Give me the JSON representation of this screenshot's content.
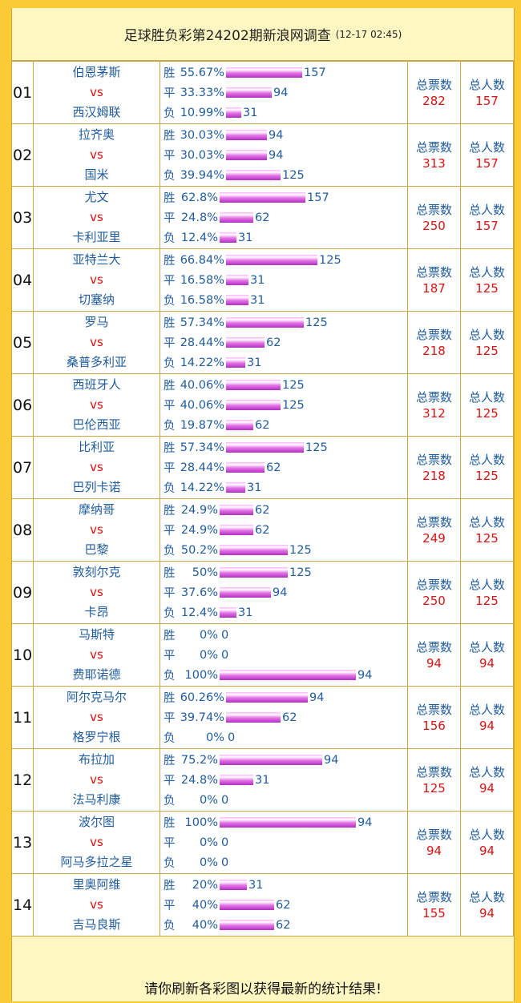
{
  "header": {
    "title": "足球胜负彩第24202期新浪网调查",
    "timestamp": "(12-17 02:45)"
  },
  "labels": {
    "vs": "vs",
    "win": "胜",
    "draw": "平",
    "lose": "负",
    "total_votes": "总票数",
    "total_people": "总人数"
  },
  "matches": [
    {
      "no": "01",
      "home": "伯恩茅斯",
      "away": "西汉姆联",
      "win_pct": "55.67%",
      "win_count": "157",
      "draw_pct": "33.33%",
      "draw_count": "94",
      "lose_pct": "10.99%",
      "lose_count": "31",
      "total_votes": "282",
      "total_people": "157"
    },
    {
      "no": "02",
      "home": "拉齐奥",
      "away": "国米",
      "win_pct": "30.03%",
      "win_count": "94",
      "draw_pct": "30.03%",
      "draw_count": "94",
      "lose_pct": "39.94%",
      "lose_count": "125",
      "total_votes": "313",
      "total_people": "157"
    },
    {
      "no": "03",
      "home": "尤文",
      "away": "卡利亚里",
      "win_pct": "62.8%",
      "win_count": "157",
      "draw_pct": "24.8%",
      "draw_count": "62",
      "lose_pct": "12.4%",
      "lose_count": "31",
      "total_votes": "250",
      "total_people": "157"
    },
    {
      "no": "04",
      "home": "亚特兰大",
      "away": "切塞纳",
      "win_pct": "66.84%",
      "win_count": "125",
      "draw_pct": "16.58%",
      "draw_count": "31",
      "lose_pct": "16.58%",
      "lose_count": "31",
      "total_votes": "187",
      "total_people": "125"
    },
    {
      "no": "05",
      "home": "罗马",
      "away": "桑普多利亚",
      "win_pct": "57.34%",
      "win_count": "125",
      "draw_pct": "28.44%",
      "draw_count": "62",
      "lose_pct": "14.22%",
      "lose_count": "31",
      "total_votes": "218",
      "total_people": "125"
    },
    {
      "no": "06",
      "home": "西班牙人",
      "away": "巴伦西亚",
      "win_pct": "40.06%",
      "win_count": "125",
      "draw_pct": "40.06%",
      "draw_count": "125",
      "lose_pct": "19.87%",
      "lose_count": "62",
      "total_votes": "312",
      "total_people": "125"
    },
    {
      "no": "07",
      "home": "比利亚",
      "away": "巴列卡诺",
      "win_pct": "57.34%",
      "win_count": "125",
      "draw_pct": "28.44%",
      "draw_count": "62",
      "lose_pct": "14.22%",
      "lose_count": "31",
      "total_votes": "218",
      "total_people": "125"
    },
    {
      "no": "08",
      "home": "摩纳哥",
      "away": "巴黎",
      "win_pct": "24.9%",
      "win_count": "62",
      "draw_pct": "24.9%",
      "draw_count": "62",
      "lose_pct": "50.2%",
      "lose_count": "125",
      "total_votes": "249",
      "total_people": "125"
    },
    {
      "no": "09",
      "home": "敦刻尔克",
      "away": "卡昂",
      "win_pct": "50%",
      "win_count": "125",
      "draw_pct": "37.6%",
      "draw_count": "94",
      "lose_pct": "12.4%",
      "lose_count": "31",
      "total_votes": "250",
      "total_people": "125"
    },
    {
      "no": "10",
      "home": "马斯特",
      "away": "费耶诺德",
      "win_pct": "0%",
      "win_count": "0",
      "draw_pct": "0%",
      "draw_count": "0",
      "lose_pct": "100%",
      "lose_count": "94",
      "total_votes": "94",
      "total_people": "94"
    },
    {
      "no": "11",
      "home": "阿尔克马尔",
      "away": "格罗宁根",
      "win_pct": "60.26%",
      "win_count": "94",
      "draw_pct": "39.74%",
      "draw_count": "62",
      "lose_pct": "0%",
      "lose_count": "0",
      "total_votes": "156",
      "total_people": "94"
    },
    {
      "no": "12",
      "home": "布拉加",
      "away": "法马利康",
      "win_pct": "75.2%",
      "win_count": "94",
      "draw_pct": "24.8%",
      "draw_count": "31",
      "lose_pct": "0%",
      "lose_count": "0",
      "total_votes": "125",
      "total_people": "94"
    },
    {
      "no": "13",
      "home": "波尔图",
      "away": "阿马多拉之星",
      "win_pct": "100%",
      "win_count": "94",
      "draw_pct": "0%",
      "draw_count": "0",
      "lose_pct": "0%",
      "lose_count": "0",
      "total_votes": "94",
      "total_people": "94"
    },
    {
      "no": "14",
      "home": "里奥阿维",
      "away": "吉马良斯",
      "win_pct": "20%",
      "win_count": "31",
      "draw_pct": "40%",
      "draw_count": "62",
      "lose_pct": "40%",
      "lose_count": "62",
      "total_votes": "155",
      "total_people": "94"
    }
  ],
  "footer": {
    "text": "请你刷新各彩图以获得最新的统计结果!"
  }
}
